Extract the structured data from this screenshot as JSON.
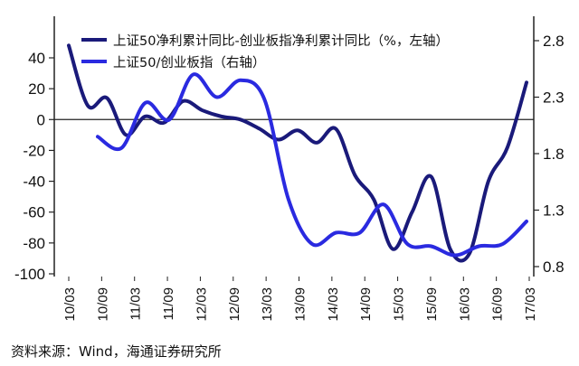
{
  "chart_data": {
    "type": "line",
    "x": [
      "10/03",
      "10/06",
      "10/09",
      "10/12",
      "11/03",
      "11/06",
      "11/09",
      "11/12",
      "12/03",
      "12/06",
      "12/09",
      "12/12",
      "13/03",
      "13/06",
      "13/09",
      "13/12",
      "14/03",
      "14/06",
      "14/09",
      "14/12",
      "15/03",
      "15/06",
      "15/09",
      "15/12",
      "16/03",
      "16/06",
      "16/09",
      "16/12",
      "17/03"
    ],
    "x_tick_labels": [
      "10/03",
      "10/09",
      "11/03",
      "11/09",
      "12/03",
      "12/09",
      "13/03",
      "13/09",
      "14/03",
      "14/09",
      "15/03",
      "15/09",
      "16/03",
      "16/09",
      "17/03"
    ],
    "y_left": {
      "ticks": [
        40,
        20,
        0,
        -20,
        -40,
        -60,
        -80,
        -100
      ],
      "ylim": [
        -100,
        50
      ]
    },
    "y_right": {
      "ticks": [
        2.8,
        2.3,
        1.8,
        1.3,
        0.8
      ],
      "ylim": [
        0.8,
        2.8
      ]
    },
    "series": [
      {
        "name": "上证50净利累计同比-创业板指净利累计同比（%，左轴）",
        "axis": "left",
        "color": "#1a1a7a",
        "values": [
          48,
          9,
          14,
          -10,
          2,
          -2,
          12,
          6,
          2,
          0,
          -6,
          -13,
          -7,
          -15,
          -6,
          -36,
          -52,
          -84,
          -60,
          -37,
          -84,
          -87,
          -40,
          -18,
          24,
          null,
          null,
          null,
          null
        ]
      },
      {
        "name": "上证50/创业板指（右轴）",
        "axis": "right",
        "color": "#2a2ae0",
        "values": [
          null,
          1.95,
          1.85,
          2.25,
          2.1,
          2.5,
          2.3,
          2.45,
          2.28,
          1.4,
          1.0,
          1.1,
          1.1,
          1.35,
          1.0,
          0.98,
          0.9,
          0.98,
          1.0,
          1.2,
          null,
          null,
          null,
          null,
          null,
          null,
          null,
          null,
          null
        ]
      }
    ],
    "legend_placement": "top"
  },
  "legend": {
    "series1": "上证50净利累计同比-创业板指净利累计同比（%，左轴）",
    "series2": "上证50/创业板指（右轴）"
  },
  "source_text": "资料来源：Wind，海通证券研究所"
}
